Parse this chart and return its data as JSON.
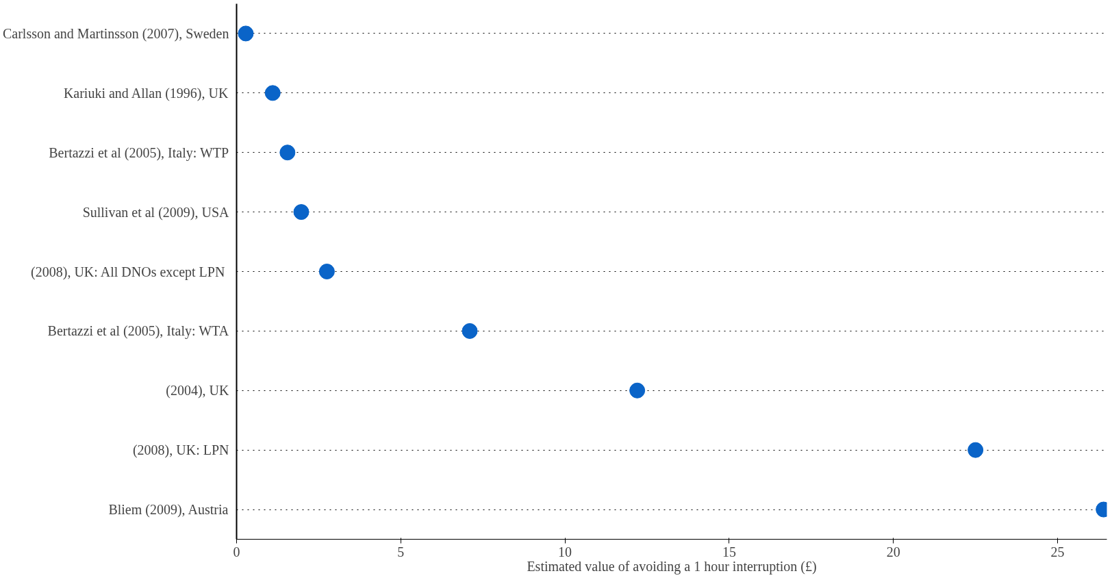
{
  "chart_data": {
    "type": "scatter",
    "orientation": "horizontal",
    "categories": [
      "Carlsson and Martinsson (2007), Sweden",
      "Kariuki and Allan (1996), UK",
      "Bertazzi et al (2005), Italy: WTP",
      "Sullivan et al (2009), USA",
      "(2008), UK:  All DNOs except LPN",
      "Bertazzi et al (2005), Italy: WTA",
      "(2004), UK",
      "(2008), UK: LPN",
      "Bliem (2009), Austria"
    ],
    "values": [
      0.28,
      1.1,
      1.55,
      1.97,
      2.75,
      7.1,
      12.2,
      22.5,
      26.4
    ],
    "color": "#0a64c8",
    "marker": "circle",
    "xlabel": "Estimated value of avoiding a 1 hour interruption (£)",
    "xlim": [
      0,
      26.5
    ],
    "xticks": [
      0,
      5,
      10,
      15,
      20,
      25
    ],
    "grid": "y"
  }
}
